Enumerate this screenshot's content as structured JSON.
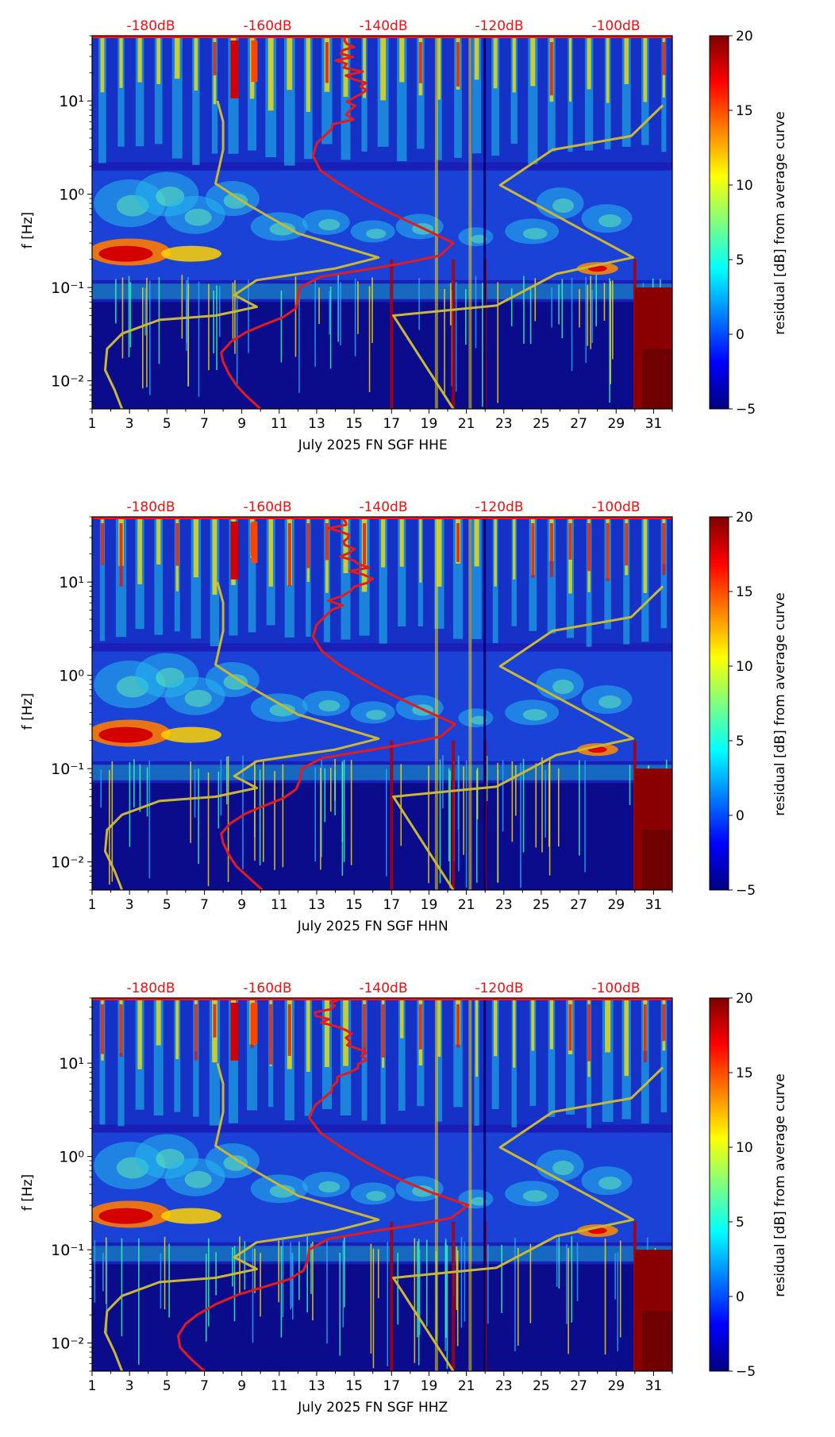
{
  "colors": {
    "top_db": "#ee1111",
    "red_curve": "#e41a1c",
    "yellow_curve": "#c8b834",
    "jet": [
      "#00007f",
      "#0000ff",
      "#007fff",
      "#00ffff",
      "#7fff7f",
      "#ffff00",
      "#ff7f00",
      "#ff0000",
      "#7f0000"
    ]
  },
  "chart_data": [
    {
      "type": "heatmap",
      "title": "",
      "xlabel": "July 2025 FN SGF  HHE",
      "ylabel": "f [Hz]",
      "x_range": [
        1,
        32
      ],
      "x_ticks": [
        "1",
        "3",
        "5",
        "7",
        "9",
        "11",
        "13",
        "15",
        "17",
        "19",
        "21",
        "23",
        "25",
        "27",
        "29",
        "31"
      ],
      "y_scale": "log",
      "y_range": [
        0.005,
        50
      ],
      "y_ticks": [
        "10⁻²",
        "10⁻¹",
        "10⁰",
        "10¹"
      ],
      "top_axis_labels": [
        "-180dB",
        "-160dB",
        "-140dB",
        "-120dB",
        "-100dB"
      ],
      "colorbar": {
        "label": "residual [dB] from average curve",
        "range": [
          -5,
          20
        ],
        "ticks": [
          "20",
          "15",
          "10",
          "5",
          "0",
          "−5"
        ]
      },
      "red_curve": [
        [
          10.0,
          0.005
        ],
        [
          9.2,
          0.007
        ],
        [
          8.7,
          0.009
        ],
        [
          8.3,
          0.012
        ],
        [
          8.0,
          0.016
        ],
        [
          7.9,
          0.02
        ],
        [
          8.4,
          0.026
        ],
        [
          9.2,
          0.033
        ],
        [
          10.2,
          0.04
        ],
        [
          11.2,
          0.048
        ],
        [
          11.9,
          0.06
        ],
        [
          12.0,
          0.075
        ],
        [
          12.1,
          0.1
        ],
        [
          13.2,
          0.13
        ],
        [
          16.0,
          0.16
        ],
        [
          17.5,
          0.18
        ],
        [
          19.6,
          0.22
        ],
        [
          20.3,
          0.3
        ],
        [
          18.8,
          0.42
        ],
        [
          17.0,
          0.62
        ],
        [
          15.5,
          0.9
        ],
        [
          14.2,
          1.3
        ],
        [
          13.2,
          1.8
        ],
        [
          12.8,
          2.6
        ],
        [
          13.0,
          3.5
        ],
        [
          13.8,
          5.0
        ],
        [
          14.8,
          8.0
        ],
        [
          15.4,
          12.0
        ],
        [
          15.0,
          17.0
        ],
        [
          14.6,
          25.0
        ],
        [
          14.4,
          35.0
        ],
        [
          14.5,
          48.0
        ]
      ],
      "yellow_curves": [
        [
          [
            2.6,
            0.005
          ],
          [
            2.2,
            0.008
          ],
          [
            1.7,
            0.013
          ],
          [
            1.8,
            0.022
          ],
          [
            2.6,
            0.032
          ],
          [
            4.6,
            0.045
          ],
          [
            7.6,
            0.05
          ],
          [
            9.8,
            0.062
          ],
          [
            8.6,
            0.083
          ],
          [
            9.8,
            0.12
          ],
          [
            14.0,
            0.16
          ],
          [
            16.3,
            0.21
          ],
          [
            12.0,
            0.38
          ],
          [
            9.2,
            0.8
          ],
          [
            7.6,
            1.3
          ],
          [
            8.0,
            3.0
          ],
          [
            8.0,
            6.0
          ],
          [
            7.7,
            10.0
          ]
        ],
        [
          [
            20.3,
            0.005
          ],
          [
            17.1,
            0.05
          ],
          [
            22.6,
            0.064
          ],
          [
            25.8,
            0.14
          ],
          [
            29.9,
            0.21
          ],
          [
            22.8,
            1.25
          ],
          [
            25.6,
            3.0
          ],
          [
            29.8,
            4.2
          ],
          [
            31.5,
            9.0
          ]
        ]
      ]
    },
    {
      "type": "heatmap",
      "title": "",
      "xlabel": "July 2025 FN SGF  HHN",
      "ylabel": "f [Hz]",
      "x_range": [
        1,
        32
      ],
      "x_ticks": [
        "1",
        "3",
        "5",
        "7",
        "9",
        "11",
        "13",
        "15",
        "17",
        "19",
        "21",
        "23",
        "25",
        "27",
        "29",
        "31"
      ],
      "y_scale": "log",
      "y_range": [
        0.005,
        50
      ],
      "y_ticks": [
        "10⁻²",
        "10⁻¹",
        "10⁰",
        "10¹"
      ],
      "top_axis_labels": [
        "-180dB",
        "-160dB",
        "-140dB",
        "-120dB",
        "-100dB"
      ],
      "colorbar": {
        "label": "residual [dB] from average curve",
        "range": [
          -5,
          20
        ],
        "ticks": [
          "20",
          "15",
          "10",
          "5",
          "0",
          "−5"
        ]
      },
      "red_curve": [
        [
          10.1,
          0.005
        ],
        [
          9.3,
          0.007
        ],
        [
          8.7,
          0.009
        ],
        [
          8.3,
          0.012
        ],
        [
          8.0,
          0.016
        ],
        [
          7.9,
          0.02
        ],
        [
          8.4,
          0.026
        ],
        [
          9.2,
          0.033
        ],
        [
          10.2,
          0.04
        ],
        [
          11.2,
          0.048
        ],
        [
          11.9,
          0.06
        ],
        [
          12.1,
          0.075
        ],
        [
          12.2,
          0.1
        ],
        [
          13.3,
          0.13
        ],
        [
          16.0,
          0.16
        ],
        [
          17.5,
          0.18
        ],
        [
          19.6,
          0.22
        ],
        [
          20.4,
          0.3
        ],
        [
          18.8,
          0.42
        ],
        [
          17.0,
          0.62
        ],
        [
          15.5,
          0.9
        ],
        [
          14.2,
          1.3
        ],
        [
          13.3,
          1.8
        ],
        [
          12.8,
          2.6
        ],
        [
          13.0,
          3.5
        ],
        [
          13.8,
          5.0
        ],
        [
          14.8,
          8.0
        ],
        [
          15.5,
          12.0
        ],
        [
          15.0,
          17.0
        ],
        [
          14.5,
          25.0
        ],
        [
          14.2,
          35.0
        ],
        [
          14.4,
          48.0
        ]
      ],
      "yellow_curves": [
        [
          [
            2.6,
            0.005
          ],
          [
            2.2,
            0.008
          ],
          [
            1.7,
            0.013
          ],
          [
            1.8,
            0.022
          ],
          [
            2.6,
            0.032
          ],
          [
            4.6,
            0.045
          ],
          [
            7.6,
            0.05
          ],
          [
            9.8,
            0.062
          ],
          [
            8.6,
            0.083
          ],
          [
            9.8,
            0.12
          ],
          [
            14.0,
            0.16
          ],
          [
            16.3,
            0.21
          ],
          [
            12.0,
            0.38
          ],
          [
            9.2,
            0.8
          ],
          [
            7.6,
            1.3
          ],
          [
            8.0,
            3.0
          ],
          [
            8.0,
            6.0
          ],
          [
            7.7,
            10.0
          ]
        ],
        [
          [
            20.3,
            0.005
          ],
          [
            17.1,
            0.05
          ],
          [
            22.6,
            0.064
          ],
          [
            25.8,
            0.14
          ],
          [
            29.9,
            0.21
          ],
          [
            22.8,
            1.25
          ],
          [
            25.6,
            3.0
          ],
          [
            29.8,
            4.2
          ],
          [
            31.5,
            9.0
          ]
        ]
      ]
    },
    {
      "type": "heatmap",
      "title": "",
      "xlabel": "July 2025 FN SGF  HHZ",
      "ylabel": "f [Hz]",
      "x_range": [
        1,
        32
      ],
      "x_ticks": [
        "1",
        "3",
        "5",
        "7",
        "9",
        "11",
        "13",
        "15",
        "17",
        "19",
        "21",
        "23",
        "25",
        "27",
        "29",
        "31"
      ],
      "y_scale": "log",
      "y_range": [
        0.005,
        50
      ],
      "y_ticks": [
        "10⁻²",
        "10⁻¹",
        "10⁰",
        "10¹"
      ],
      "top_axis_labels": [
        "-180dB",
        "-160dB",
        "-140dB",
        "-120dB",
        "-100dB"
      ],
      "colorbar": {
        "label": "residual [dB] from average curve",
        "range": [
          -5,
          20
        ],
        "ticks": [
          "20",
          "15",
          "10",
          "5",
          "0",
          "−5"
        ]
      },
      "red_curve": [
        [
          7.0,
          0.005
        ],
        [
          6.2,
          0.007
        ],
        [
          5.7,
          0.009
        ],
        [
          5.6,
          0.012
        ],
        [
          6.0,
          0.016
        ],
        [
          6.6,
          0.02
        ],
        [
          7.6,
          0.026
        ],
        [
          8.8,
          0.033
        ],
        [
          10.2,
          0.04
        ],
        [
          11.5,
          0.048
        ],
        [
          12.3,
          0.06
        ],
        [
          12.5,
          0.075
        ],
        [
          12.6,
          0.1
        ],
        [
          13.6,
          0.13
        ],
        [
          16.2,
          0.16
        ],
        [
          18.0,
          0.18
        ],
        [
          20.2,
          0.22
        ],
        [
          21.1,
          0.3
        ],
        [
          19.0,
          0.42
        ],
        [
          17.0,
          0.62
        ],
        [
          15.5,
          0.9
        ],
        [
          14.2,
          1.3
        ],
        [
          13.2,
          1.8
        ],
        [
          12.6,
          2.6
        ],
        [
          12.9,
          3.5
        ],
        [
          13.8,
          5.0
        ],
        [
          14.8,
          8.0
        ],
        [
          15.4,
          12.0
        ],
        [
          14.8,
          17.0
        ],
        [
          14.0,
          25.0
        ],
        [
          12.9,
          35.0
        ],
        [
          14.2,
          48.0
        ]
      ],
      "yellow_curves": [
        [
          [
            2.6,
            0.005
          ],
          [
            2.2,
            0.008
          ],
          [
            1.7,
            0.013
          ],
          [
            1.8,
            0.022
          ],
          [
            2.6,
            0.032
          ],
          [
            4.6,
            0.045
          ],
          [
            7.6,
            0.05
          ],
          [
            9.8,
            0.062
          ],
          [
            8.6,
            0.083
          ],
          [
            9.8,
            0.12
          ],
          [
            14.0,
            0.16
          ],
          [
            16.3,
            0.21
          ],
          [
            12.0,
            0.38
          ],
          [
            9.2,
            0.8
          ],
          [
            7.6,
            1.3
          ],
          [
            8.0,
            3.0
          ],
          [
            8.0,
            6.0
          ],
          [
            7.7,
            10.0
          ]
        ],
        [
          [
            20.3,
            0.005
          ],
          [
            17.1,
            0.05
          ],
          [
            22.6,
            0.064
          ],
          [
            25.8,
            0.14
          ],
          [
            29.9,
            0.21
          ],
          [
            22.8,
            1.25
          ],
          [
            25.6,
            3.0
          ],
          [
            29.8,
            4.2
          ],
          [
            31.5,
            9.0
          ]
        ]
      ]
    }
  ]
}
